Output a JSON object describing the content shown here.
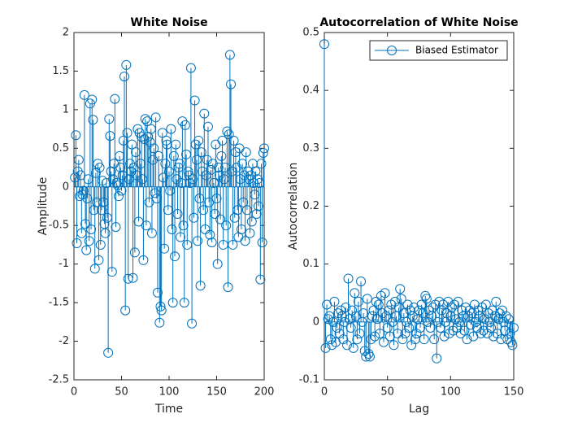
{
  "chart_data": [
    {
      "type": "stem",
      "title": "White Noise",
      "xlabel": "Time",
      "ylabel": "Amplitude",
      "color": "#0072bd",
      "xlim": [
        0,
        200
      ],
      "ylim": [
        -2.5,
        2
      ],
      "xticks": [
        0,
        50,
        100,
        150,
        200
      ],
      "yticks": [
        -2.5,
        -2,
        -1.5,
        -1,
        -0.5,
        0,
        0.5,
        1,
        1.5,
        2
      ],
      "x": [
        1,
        2,
        3,
        4,
        5,
        6,
        7,
        8,
        9,
        10,
        11,
        12,
        13,
        14,
        15,
        16,
        17,
        18,
        19,
        20,
        21,
        22,
        23,
        24,
        25,
        26,
        27,
        28,
        29,
        30,
        31,
        32,
        33,
        34,
        35,
        36,
        37,
        38,
        39,
        40,
        41,
        42,
        43,
        44,
        45,
        46,
        47,
        48,
        49,
        50,
        51,
        52,
        53,
        54,
        55,
        56,
        57,
        58,
        59,
        60,
        61,
        62,
        63,
        64,
        65,
        66,
        67,
        68,
        69,
        70,
        71,
        72,
        73,
        74,
        75,
        76,
        77,
        78,
        79,
        80,
        81,
        82,
        83,
        84,
        85,
        86,
        87,
        88,
        89,
        90,
        91,
        92,
        93,
        94,
        95,
        96,
        97,
        98,
        99,
        100,
        101,
        102,
        103,
        104,
        105,
        106,
        107,
        108,
        109,
        110,
        111,
        112,
        113,
        114,
        115,
        116,
        117,
        118,
        119,
        120,
        121,
        122,
        123,
        124,
        125,
        126,
        127,
        128,
        129,
        130,
        131,
        132,
        133,
        134,
        135,
        136,
        137,
        138,
        139,
        140,
        141,
        142,
        143,
        144,
        145,
        146,
        147,
        148,
        149,
        150,
        151,
        152,
        153,
        154,
        155,
        156,
        157,
        158,
        159,
        160,
        161,
        162,
        163,
        164,
        165,
        166,
        167,
        168,
        169,
        170,
        171,
        172,
        173,
        174,
        175,
        176,
        177,
        178,
        179,
        180,
        181,
        182,
        183,
        184,
        185,
        186,
        187,
        188,
        189,
        190,
        191,
        192,
        193,
        194,
        195,
        196,
        197,
        198,
        199,
        200
      ],
      "values": [
        0.12,
        0.67,
        -0.73,
        0.2,
        0.35,
        -0.12,
        0.15,
        -0.6,
        -0.1,
        -0.05,
        1.19,
        -0.48,
        -0.82,
        -0.15,
        0.1,
        -0.7,
        1.08,
        -0.55,
        1.13,
        0.87,
        -0.3,
        -1.06,
        0.18,
        -0.2,
        0.3,
        -0.95,
        0.25,
        -0.75,
        -0.3,
        0.08,
        -0.2,
        -0.48,
        -0.6,
        0.05,
        -0.4,
        -2.15,
        0.88,
        0.66,
        0.2,
        -1.1,
        0.1,
        0.3,
        1.14,
        -0.52,
        0.05,
        0.02,
        -0.12,
        0.4,
        0.25,
        -0.05,
        0.15,
        0.6,
        1.43,
        -1.6,
        1.58,
        0.7,
        -1.19,
        0.1,
        0.3,
        0.2,
        0.55,
        -1.18,
        0.25,
        -0.85,
        0.45,
        0.15,
        0.75,
        -0.45,
        0.7,
        0.3,
        0.65,
        0.1,
        -0.95,
        0.62,
        0.88,
        -0.5,
        0.85,
        0.65,
        -0.2,
        0.58,
        0.75,
        -0.6,
        0.35,
        0.5,
        -0.08,
        0.9,
        -0.15,
        -1.37,
        0.4,
        -1.76,
        -1.55,
        -1.6,
        0.7,
        0.12,
        -0.8,
        0.3,
        0.6,
        0.55,
        -0.3,
        0.2,
        -0.05,
        0.75,
        -0.55,
        -1.5,
        0.4,
        -0.9,
        0.55,
        0.1,
        -0.35,
        0.25,
        0.3,
        -0.65,
        0.05,
        0.85,
        -0.5,
        -1.5,
        0.8,
        0.42,
        -0.75,
        0.2,
        0.15,
        0.05,
        1.54,
        -1.77,
        0.1,
        -0.4,
        1.12,
        0.55,
        0.35,
        -0.7,
        0.6,
        -0.15,
        -1.28,
        0.45,
        0.2,
        -0.3,
        0.95,
        -0.55,
        0.15,
        0.35,
        0.78,
        -0.2,
        -0.62,
        0.22,
        -0.72,
        0.3,
        0.05,
        -0.35,
        0.55,
        -0.15,
        -1.0,
        0.25,
        0.15,
        -0.42,
        0.4,
        0.6,
        -0.75,
        0.1,
        0.25,
        -0.5,
        0.72,
        -1.3,
        0.68,
        1.71,
        1.33,
        0.2,
        -0.75,
        0.6,
        -0.4,
        0.45,
        0.25,
        -0.3,
        -0.65,
        0.5,
        0.1,
        -0.55,
        0.3,
        -0.2,
        0.15,
        -0.7,
        0.45,
        -0.3,
        0.2,
        0.1,
        -0.6,
        0.15,
        -0.45,
        0.3,
        0.05,
        -0.1,
        0.2,
        -0.35,
        0.1,
        -0.25,
        0.05,
        -1.2,
        0.3,
        -0.72,
        0.44,
        0.5
      ]
    },
    {
      "type": "stem",
      "title": "Autocorrelation of White Noise",
      "xlabel": "Lag",
      "ylabel": "Autocorrelation",
      "color": "#0072bd",
      "legend": "northeast",
      "series": [
        {
          "name": "Biased Estimator"
        }
      ],
      "xlim": [
        0,
        150
      ],
      "ylim": [
        -0.1,
        0.5
      ],
      "xticks": [
        0,
        50,
        100,
        150
      ],
      "yticks": [
        -0.1,
        0,
        0.1,
        0.2,
        0.3,
        0.4,
        0.5
      ],
      "x": [
        0,
        1,
        2,
        3,
        4,
        5,
        6,
        7,
        8,
        9,
        10,
        11,
        12,
        13,
        14,
        15,
        16,
        17,
        18,
        19,
        20,
        21,
        22,
        23,
        24,
        25,
        26,
        27,
        28,
        29,
        30,
        31,
        32,
        33,
        34,
        35,
        36,
        37,
        38,
        39,
        40,
        41,
        42,
        43,
        44,
        45,
        46,
        47,
        48,
        49,
        50,
        51,
        52,
        53,
        54,
        55,
        56,
        57,
        58,
        59,
        60,
        61,
        62,
        63,
        64,
        65,
        66,
        67,
        68,
        69,
        70,
        71,
        72,
        73,
        74,
        75,
        76,
        77,
        78,
        79,
        80,
        81,
        82,
        83,
        84,
        85,
        86,
        87,
        88,
        89,
        90,
        91,
        92,
        93,
        94,
        95,
        96,
        97,
        98,
        99,
        100,
        101,
        102,
        103,
        104,
        105,
        106,
        107,
        108,
        109,
        110,
        111,
        112,
        113,
        114,
        115,
        116,
        117,
        118,
        119,
        120,
        121,
        122,
        123,
        124,
        125,
        126,
        127,
        128,
        129,
        130,
        131,
        132,
        133,
        134,
        135,
        136,
        137,
        138,
        139,
        140,
        141,
        142,
        143,
        144,
        145,
        146,
        147,
        148,
        149,
        150
      ],
      "values": [
        0.48,
        -0.045,
        0.03,
        0.005,
        0.01,
        -0.03,
        -0.04,
        0.0,
        0.035,
        -0.035,
        -0.01,
        0.015,
        -0.02,
        0.02,
        0.01,
        -0.03,
        0.0,
        0.025,
        -0.04,
        0.075,
        0.005,
        -0.01,
        0.02,
        -0.045,
        0.05,
        0.01,
        -0.03,
        0.035,
        -0.02,
        0.07,
        0.0,
        0.015,
        -0.05,
        -0.06,
        0.04,
        -0.055,
        -0.06,
        -0.03,
        0.01,
        0.02,
        -0.025,
        0.035,
        0.005,
        0.03,
        -0.02,
        0.045,
        0.015,
        -0.035,
        0.05,
        0.01,
        -0.01,
        0.02,
        -0.025,
        0.03,
        0.0,
        -0.04,
        0.035,
        0.01,
        -0.02,
        0.025,
        0.057,
        0.04,
        -0.03,
        0.015,
        -0.02,
        0.0,
        0.03,
        -0.01,
        0.02,
        -0.04,
        0.01,
        0.025,
        -0.03,
        -0.02,
        0.005,
        0.02,
        -0.01,
        0.03,
        0.015,
        -0.03,
        0.045,
        0.04,
        0.0,
        0.02,
        -0.01,
        0.01,
        0.025,
        -0.03,
        0.03,
        -0.063,
        0.0,
        0.035,
        -0.01,
        0.02,
        0.03,
        -0.025,
        0.0,
        0.015,
        0.035,
        -0.02,
        0.01,
        0.025,
        -0.015,
        0.03,
        0.005,
        -0.01,
        0.035,
        0.0,
        -0.02,
        0.02,
        0.01,
        -0.015,
        0.025,
        -0.03,
        0.01,
        0.02,
        -0.005,
        0.015,
        -0.025,
        0.03,
        0.0,
        -0.01,
        0.02,
        0.01,
        -0.02,
        0.025,
        -0.015,
        0.005,
        0.03,
        -0.02,
        0.015,
        0.0,
        -0.01,
        0.02,
        -0.025,
        0.01,
        0.035,
        -0.02,
        0.005,
        0.015,
        -0.03,
        0.02,
        0.0,
        -0.015,
        0.01,
        -0.03,
        0.005,
        -0.02,
        -0.035,
        -0.04,
        -0.01
      ]
    }
  ]
}
